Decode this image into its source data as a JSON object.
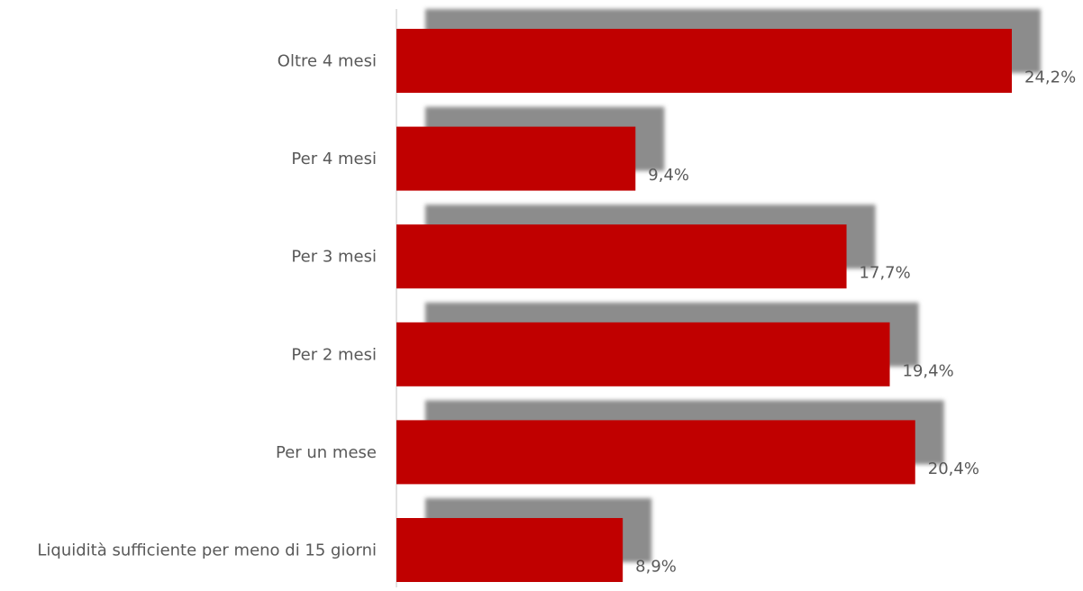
{
  "chart_data": {
    "type": "bar",
    "orientation": "horizontal",
    "categories": [
      "Oltre 4 mesi",
      "Per 4 mesi",
      "Per 3 mesi",
      "Per 2 mesi",
      "Per un mese",
      "Liquidità sufficiente per meno di 15 giorni"
    ],
    "values": [
      24.2,
      9.4,
      17.7,
      19.4,
      20.4,
      8.9
    ],
    "value_labels": [
      "24,2%",
      "9,4%",
      "17,7%",
      "19,4%",
      "20,4%",
      "8,9%"
    ],
    "xlim": [
      0,
      25
    ],
    "grid": false,
    "legend": "none",
    "colors": {
      "bar": "#c00000",
      "shadow": "#8c8c8c",
      "axis": "#d9d9d9",
      "text": "#595959"
    }
  }
}
